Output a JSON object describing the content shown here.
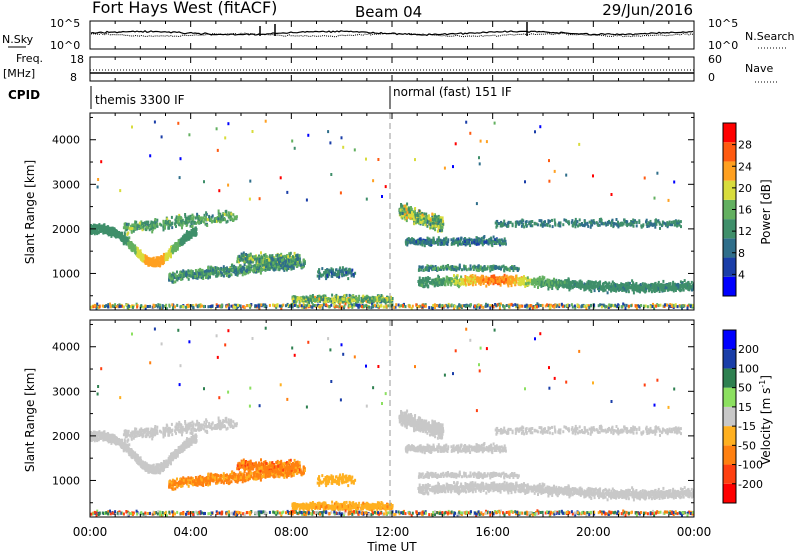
{
  "header": {
    "radar": "Fort Hays West (fitACF)",
    "beam": "Beam 04",
    "date": "29/Jun/2016"
  },
  "panels": {
    "nsky_label": "N.Sky",
    "nsky_ticks": [
      "10^5",
      "10^0"
    ],
    "nsearch_label": "N.Search",
    "nsearch_ticks": [
      "10^5",
      "10^0"
    ],
    "freq_label": "Freq.",
    "freq_unit": "[MHz]",
    "freq_ticks": [
      "18",
      "8"
    ],
    "nave_label": "Nave",
    "nave_ticks": [
      "60",
      "0"
    ],
    "cpid_label": "CPID",
    "cpid_segments": [
      "themis 3300 IF",
      "normal (fast) 151 IF"
    ]
  },
  "colors": {
    "power": [
      "#0000ff",
      "#1a3ea8",
      "#2f6e8a",
      "#3f8f6a",
      "#63b060",
      "#d8dc3c",
      "#ffa020",
      "#ff5a10",
      "#ff0000"
    ],
    "velocity": [
      "#ff0000",
      "#ff4010",
      "#ff8010",
      "#ffb020",
      "#c8c8c8",
      "#8ce060",
      "#2e8050",
      "#1a3ea8",
      "#0000ff"
    ]
  },
  "chart_data": [
    {
      "type": "heatmap",
      "title": "",
      "xlabel": "",
      "ylabel": "Slant Range [km]",
      "xlim": [
        "00:00",
        "24:00"
      ],
      "ylim": [
        180,
        4600
      ],
      "y_ticks": [
        "1000",
        "2000",
        "3000",
        "4000"
      ],
      "colorbar": {
        "label": "Power [dB]",
        "ticks": [
          "4",
          "8",
          "12",
          "16",
          "20",
          "24",
          "28"
        ],
        "range": [
          0,
          32
        ]
      },
      "features": [
        {
          "time_start": "00:00",
          "time_end": "04:15",
          "range_center": "2000 km dipping to 1250 km near 02:30",
          "value": "high power (20-28 dB) at minimum"
        },
        {
          "time_start": "03:00",
          "time_end": "08:30",
          "range_center": "900-1400 km",
          "value": "8-16 dB"
        },
        {
          "time_start": "08:00",
          "time_end": "12:00",
          "range_center": "300-700 km",
          "value": "12-20 dB"
        },
        {
          "time_start": "12:15",
          "time_end": "14:00",
          "range_center": "1800-2800 km",
          "value": "12-20 dB"
        },
        {
          "time_start": "13:00",
          "time_end": "24:00",
          "range_center": "500-1100 km",
          "value": "peak ~24 dB near 16:00"
        },
        {
          "time_start": "16:00",
          "time_end": "23:30",
          "range_center": "2000-2300 km",
          "value": "8-12 dB"
        }
      ]
    },
    {
      "type": "heatmap",
      "title": "",
      "xlabel": "Time UT",
      "ylabel": "Slant Range [km]",
      "xlim": [
        "00:00",
        "24:00"
      ],
      "ylim": [
        180,
        4600
      ],
      "x_ticks": [
        "00:00",
        "04:00",
        "08:00",
        "12:00",
        "16:00",
        "20:00",
        "00:00"
      ],
      "y_ticks": [
        "1000",
        "2000",
        "3000",
        "4000"
      ],
      "colorbar": {
        "label": "Velocity [m s^-1]",
        "ticks": [
          "-200",
          "-100",
          "-50",
          "-15",
          "15",
          "50",
          "100",
          "200"
        ],
        "range": [
          -250,
          250
        ]
      },
      "features": [
        {
          "time_start": "00:00",
          "time_end": "04:15",
          "range_center": "2000 km dipping to 1250 km",
          "value": "ground scatter (|v| < 15)"
        },
        {
          "time_start": "03:00",
          "time_end": "08:30",
          "range_center": "800-1500 km",
          "value": "-50 to -100 m/s"
        },
        {
          "time_start": "08:00",
          "time_end": "12:00",
          "range_center": "300-700 km",
          "value": "-15 to -50 m/s"
        },
        {
          "time_start": "12:15",
          "time_end": "24:00",
          "range_center": "500-2800 km",
          "value": "ground scatter (|v| < 15)"
        }
      ]
    }
  ]
}
